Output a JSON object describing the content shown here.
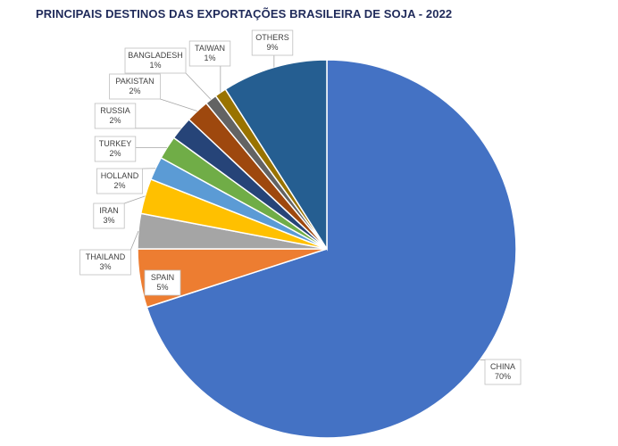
{
  "chart_data": {
    "type": "pie",
    "title": "PRINCIPAIS DESTINOS DAS EXPORTAÇÕES BRASILEIRA DE SOJA - 2022",
    "slices": [
      {
        "label": "CHINA",
        "value": 70,
        "pct": "70%",
        "color": "#4472c4"
      },
      {
        "label": "SPAIN",
        "value": 5,
        "pct": "5%",
        "color": "#ed7d31"
      },
      {
        "label": "THAILAND",
        "value": 3,
        "pct": "3%",
        "color": "#a5a5a5"
      },
      {
        "label": "IRAN",
        "value": 3,
        "pct": "3%",
        "color": "#ffc000"
      },
      {
        "label": "HOLLAND",
        "value": 2,
        "pct": "2%",
        "color": "#5b9bd5"
      },
      {
        "label": "TURKEY",
        "value": 2,
        "pct": "2%",
        "color": "#70ad47"
      },
      {
        "label": "RUSSIA",
        "value": 2,
        "pct": "2%",
        "color": "#264478"
      },
      {
        "label": "PAKISTAN",
        "value": 2,
        "pct": "2%",
        "color": "#9e480e"
      },
      {
        "label": "BANGLADESH",
        "value": 1,
        "pct": "1%",
        "color": "#636363"
      },
      {
        "label": "TAIWAN",
        "value": 1,
        "pct": "1%",
        "color": "#997300"
      },
      {
        "label": "OTHERS",
        "value": 9,
        "pct": "9%",
        "color": "#255e91"
      }
    ]
  }
}
